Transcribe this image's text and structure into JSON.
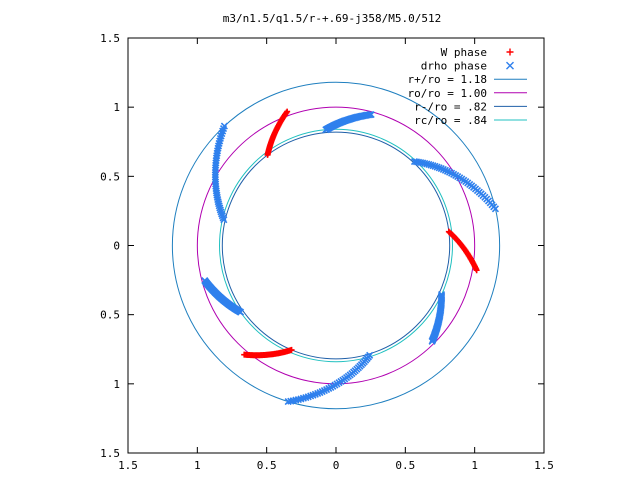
{
  "chart_data": {
    "type": "scatter",
    "title": "m3/n1.5/q1.5/r-+.69-j358/M5.0/512",
    "xlabel": "",
    "ylabel": "",
    "xlim": [
      -1.5,
      1.5
    ],
    "ylim": [
      -1.5,
      1.5
    ],
    "x_ticks": [
      {
        "value": -1.5,
        "label": "1.5"
      },
      {
        "value": -1.0,
        "label": "1"
      },
      {
        "value": -0.5,
        "label": "0.5"
      },
      {
        "value": 0.0,
        "label": "0"
      },
      {
        "value": 0.5,
        "label": "0.5"
      },
      {
        "value": 1.0,
        "label": "1"
      },
      {
        "value": 1.5,
        "label": "1.5"
      }
    ],
    "y_ticks": [
      {
        "value": 1.5,
        "label": "1.5"
      },
      {
        "value": 1.0,
        "label": "1"
      },
      {
        "value": 0.5,
        "label": "0.5"
      },
      {
        "value": 0.0,
        "label": "0"
      },
      {
        "value": -0.5,
        "label": "0.5"
      },
      {
        "value": -1.0,
        "label": "1"
      },
      {
        "value": -1.5,
        "label": "1.5"
      }
    ],
    "grid": false,
    "legend_position": "top-right",
    "series": [
      {
        "name": "W phase",
        "kind": "points",
        "marker": "plus",
        "color": "#ff0000",
        "arms": [
          {
            "r_start": 0.82,
            "r_end": 1.03,
            "theta_start_deg": 127,
            "theta_end_deg": 110,
            "points": 40
          },
          {
            "r_start": 0.82,
            "r_end": 1.03,
            "theta_start_deg": 7,
            "theta_end_deg": -10,
            "points": 40
          },
          {
            "r_start": 0.82,
            "r_end": 1.03,
            "theta_start_deg": 247,
            "theta_end_deg": 230,
            "points": 40
          }
        ]
      },
      {
        "name": "drho phase",
        "kind": "points",
        "marker": "cross",
        "color": "#2f80ed",
        "arms": [
          {
            "r_start": 0.84,
            "r_end": 0.98,
            "theta_start_deg": 95,
            "theta_end_deg": 75,
            "points": 40
          },
          {
            "r_start": 0.83,
            "r_end": 1.18,
            "theta_start_deg": 47,
            "theta_end_deg": 13,
            "points": 42
          },
          {
            "r_start": 0.84,
            "r_end": 0.98,
            "theta_start_deg": 215,
            "theta_end_deg": 195,
            "points": 40
          },
          {
            "r_start": 0.83,
            "r_end": 1.18,
            "theta_start_deg": 167,
            "theta_end_deg": 133,
            "points": 42
          },
          {
            "r_start": 0.84,
            "r_end": 0.98,
            "theta_start_deg": 335,
            "theta_end_deg": 315,
            "points": 40
          },
          {
            "r_start": 0.83,
            "r_end": 1.18,
            "theta_start_deg": 287,
            "theta_end_deg": 253,
            "points": 42
          }
        ]
      },
      {
        "name": "r+/ro = 1.18",
        "kind": "circle",
        "radius": 1.18,
        "color": "#1f7fbf"
      },
      {
        "name": "ro/ro = 1.00",
        "kind": "circle",
        "radius": 1.0,
        "color": "#b000b0"
      },
      {
        "name": "r-/ro = .82",
        "kind": "circle",
        "radius": 0.82,
        "color": "#1f5fa8"
      },
      {
        "name": "rc/ro = .84",
        "kind": "circle",
        "radius": 0.84,
        "color": "#20c0c0"
      }
    ]
  }
}
